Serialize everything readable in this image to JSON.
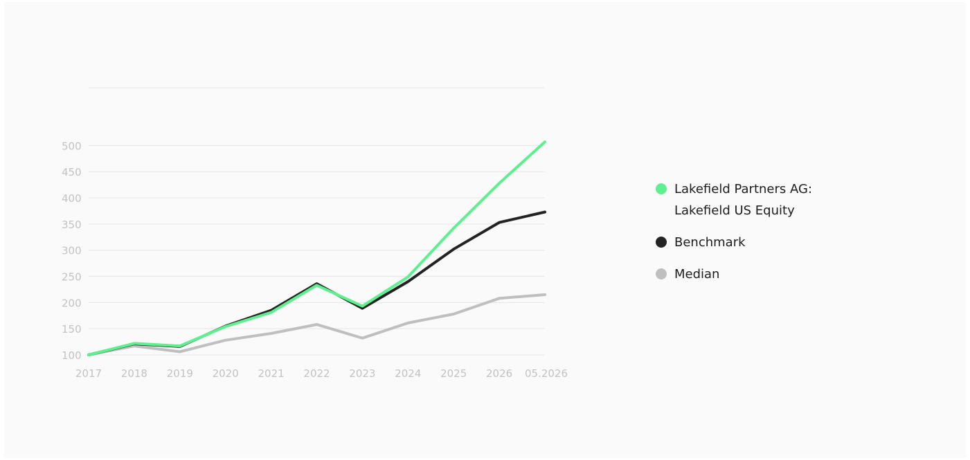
{
  "chart_data": {
    "type": "line",
    "title": "",
    "xlabel": "",
    "ylabel": "",
    "categories": [
      "2017",
      "2018",
      "2019",
      "2020",
      "2021",
      "2022",
      "2023",
      "2024",
      "2025",
      "2026",
      "05.2026"
    ],
    "yticks": [
      100,
      150,
      200,
      250,
      300,
      350,
      400,
      450,
      500
    ],
    "ylim": [
      100,
      515
    ],
    "grid": true,
    "legend_position": "right",
    "series": [
      {
        "name": "Median",
        "color": "#bfbfbf",
        "values": [
          100,
          117,
          106,
          128,
          141,
          158,
          132,
          161,
          178,
          208,
          215
        ]
      },
      {
        "name": "Benchmark",
        "color": "#232323",
        "values": [
          100,
          121,
          116,
          155,
          185,
          236,
          189,
          240,
          302,
          353,
          373
        ]
      },
      {
        "name": "Lakefield Partners AG: Lakefield US Equity",
        "color": "#5ef08e",
        "values": [
          100,
          122,
          117,
          154,
          181,
          233,
          193,
          249,
          342,
          428,
          507
        ]
      }
    ]
  },
  "legend": [
    {
      "label_line1": "Lakefield Partners AG:",
      "label_line2": "Lakefield US Equity",
      "color": "#5ef08e"
    },
    {
      "label_line1": "Benchmark",
      "label_line2": "",
      "color": "#232323"
    },
    {
      "label_line1": "Median",
      "label_line2": "",
      "color": "#bfbfbf"
    }
  ]
}
